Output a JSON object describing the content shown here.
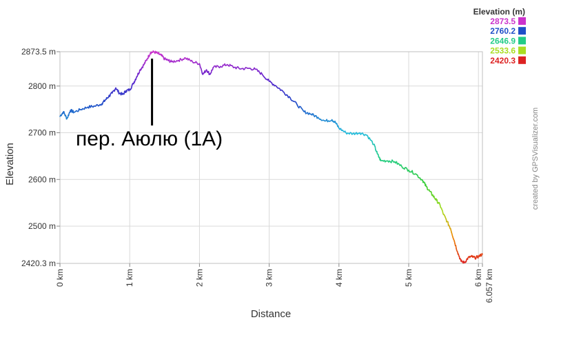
{
  "chart_data": {
    "type": "line",
    "xlabel": "Distance",
    "ylabel": "Elevation",
    "x_unit": "km",
    "y_unit": "m",
    "xlim": [
      0,
      6.057
    ],
    "ylim": [
      2420.3,
      2873.5
    ],
    "y_ticks": [
      {
        "value": 2420.3,
        "label": "2420.3 m"
      },
      {
        "value": 2500,
        "label": "2500 m"
      },
      {
        "value": 2600,
        "label": "2600 m"
      },
      {
        "value": 2700,
        "label": "2700 m"
      },
      {
        "value": 2800,
        "label": "2800 m"
      },
      {
        "value": 2873.5,
        "label": "2873.5 m"
      }
    ],
    "x_ticks": [
      {
        "value": 0,
        "label": "0 km"
      },
      {
        "value": 1,
        "label": "1 km"
      },
      {
        "value": 2,
        "label": "2 km"
      },
      {
        "value": 3,
        "label": "3 km"
      },
      {
        "value": 4,
        "label": "4 km"
      },
      {
        "value": 5,
        "label": "5 km"
      },
      {
        "value": 6,
        "label": "6 km"
      },
      {
        "value": 6.057,
        "label": "6.057 km"
      }
    ],
    "grid": true,
    "legend": {
      "title": "Elevation (m)",
      "placement": "top-right",
      "entries": [
        {
          "label": "2873.5",
          "color": "#cc33cc"
        },
        {
          "label": "2760.2",
          "color": "#1f4fc8"
        },
        {
          "label": "2646.9",
          "color": "#22cc88"
        },
        {
          "label": "2533.6",
          "color": "#aadd22"
        },
        {
          "label": "2420.3",
          "color": "#dd2222"
        }
      ]
    },
    "color_scale": [
      {
        "value": 2420.3,
        "color": "#dd2222"
      },
      {
        "value": 2477,
        "color": "#ee8800"
      },
      {
        "value": 2533.6,
        "color": "#aadd22"
      },
      {
        "value": 2590,
        "color": "#33cc33"
      },
      {
        "value": 2646.9,
        "color": "#22cc88"
      },
      {
        "value": 2700,
        "color": "#22bbdd"
      },
      {
        "value": 2760.2,
        "color": "#1f4fc8"
      },
      {
        "value": 2810,
        "color": "#5522cc"
      },
      {
        "value": 2873.5,
        "color": "#cc33cc"
      }
    ],
    "series": [
      {
        "x": [
          0,
          0.05,
          0.1,
          0.15,
          0.2,
          0.3,
          0.4,
          0.5,
          0.6,
          0.65,
          0.7,
          0.75,
          0.8,
          0.85,
          0.9,
          0.95,
          1.0,
          1.05,
          1.1,
          1.15,
          1.2,
          1.25,
          1.3,
          1.35,
          1.4,
          1.45,
          1.5,
          1.55,
          1.6,
          1.7,
          1.8,
          1.9,
          2.0,
          2.05,
          2.1,
          2.15,
          2.2,
          2.3,
          2.4,
          2.5,
          2.6,
          2.7,
          2.8,
          2.9,
          3.0,
          3.1,
          3.2,
          3.3,
          3.4,
          3.5,
          3.6,
          3.7,
          3.8,
          3.9,
          3.95,
          4.0,
          4.1,
          4.2,
          4.3,
          4.4,
          4.5,
          4.55,
          4.6,
          4.7,
          4.8,
          4.9,
          5.0,
          5.1,
          5.2,
          5.25,
          5.3,
          5.35,
          5.4,
          5.45,
          5.5,
          5.55,
          5.6,
          5.65,
          5.7,
          5.75,
          5.8,
          5.85,
          5.9,
          5.95,
          6.0,
          6.057
        ],
        "y": [
          2735,
          2745,
          2730,
          2748,
          2744,
          2750,
          2755,
          2757,
          2762,
          2770,
          2778,
          2785,
          2796,
          2785,
          2782,
          2790,
          2792,
          2805,
          2820,
          2835,
          2845,
          2858,
          2872,
          2873,
          2870,
          2866,
          2858,
          2855,
          2852,
          2855,
          2860,
          2852,
          2848,
          2825,
          2835,
          2825,
          2840,
          2842,
          2846,
          2840,
          2837,
          2838,
          2836,
          2825,
          2810,
          2800,
          2788,
          2775,
          2760,
          2745,
          2740,
          2733,
          2725,
          2728,
          2722,
          2710,
          2700,
          2698,
          2700,
          2695,
          2675,
          2655,
          2640,
          2640,
          2638,
          2628,
          2620,
          2612,
          2598,
          2585,
          2575,
          2565,
          2555,
          2545,
          2525,
          2510,
          2495,
          2470,
          2445,
          2425,
          2422,
          2432,
          2435,
          2432,
          2435,
          2440
        ]
      }
    ],
    "annotations": [
      {
        "text": "пер. Аюлю (1А)",
        "x": 1.32
      }
    ]
  },
  "credit": "created by GPSVisualizer.com"
}
